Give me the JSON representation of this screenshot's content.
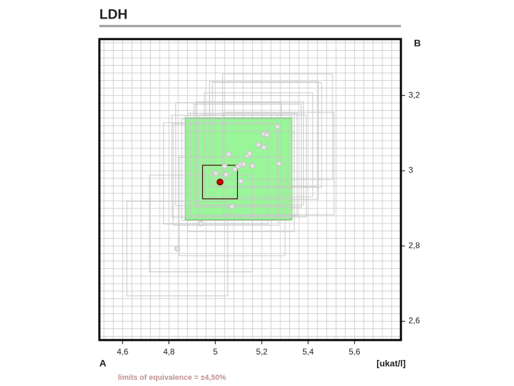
{
  "chart_data": {
    "type": "scatter",
    "title": "LDH",
    "x_label": "A",
    "y_label": "B",
    "unit_label": "[ukat/l]",
    "note": "limits of equivalence = ±4,50%",
    "equivalence_pct": 4.5,
    "xlim": [
      4.5,
      5.8
    ],
    "ylim": [
      2.55,
      3.35
    ],
    "xticks": [
      {
        "value": 4.6,
        "label": "4,6"
      },
      {
        "value": 4.8,
        "label": "4,8"
      },
      5,
      {
        "value": 5.2,
        "label": "5,2"
      },
      {
        "value": 5.4,
        "label": "5,4"
      },
      {
        "value": 5.6,
        "label": "5,6"
      }
    ],
    "yticks": [
      {
        "value": 2.6,
        "label": "2,6"
      },
      {
        "value": 2.8,
        "label": "2,8"
      },
      3,
      {
        "value": 3.2,
        "label": "3,2"
      }
    ],
    "grid": true,
    "target": {
      "x": 5.1,
      "y": 3.005,
      "color": "#8ef58e"
    },
    "points": {
      "color": "#c8c8c8",
      "x": [
        4.836,
        4.938,
        5.072,
        5.002,
        5.04,
        5.046,
        5.057,
        5.084,
        5.099,
        5.11,
        5.122,
        5.11,
        5.139,
        5.148,
        5.16,
        5.186,
        5.209,
        5.209,
        5.223,
        5.268,
        5.274
      ],
      "y": [
        2.793,
        2.86,
        2.905,
        2.993,
        3.012,
        2.99,
        3.044,
        3.003,
        3.012,
        3.017,
        3.017,
        2.972,
        3.04,
        3.046,
        3.013,
        3.069,
        3.062,
        3.098,
        3.095,
        3.117,
        3.019
      ]
    },
    "highlight": {
      "x": 5.02,
      "y": 2.97,
      "limit_pct": 1.5,
      "color": "#8b0000"
    }
  }
}
